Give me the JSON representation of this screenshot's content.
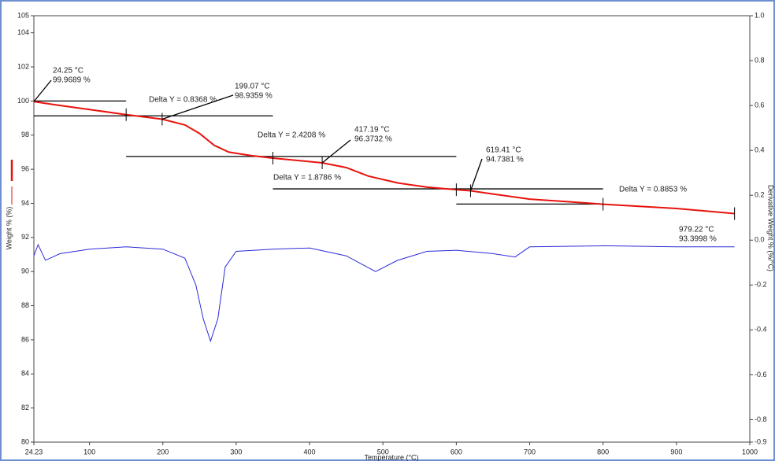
{
  "chart_data": {
    "type": "line",
    "xlabel": "Temperature (°C)",
    "ylabel": "Weight % (%)",
    "y2label": "Derivative Weight % (%/°C)",
    "xlim": [
      24.23,
      1000
    ],
    "xticks": [
      24.23,
      100,
      200,
      300,
      400,
      500,
      600,
      700,
      800,
      900,
      1000
    ],
    "ylim": [
      80,
      105
    ],
    "yticks": [
      80,
      82,
      84,
      86,
      88,
      90,
      92,
      94,
      96,
      98,
      100,
      102,
      104,
      105
    ],
    "y2lim": [
      -0.9,
      1.0
    ],
    "y2ticks": [
      {
        "value": -0.9,
        "label": "-0.9"
      },
      {
        "value": -0.8,
        "label": "-0.8"
      },
      {
        "value": -0.6,
        "label": "-0.6"
      },
      {
        "value": -0.4,
        "label": "-0.4"
      },
      {
        "value": -0.2,
        "label": "-0.2"
      },
      {
        "value": 0,
        "label": "0.0"
      },
      {
        "value": 0.2,
        "label": "0.2"
      },
      {
        "value": 0.4,
        "label": "0.4"
      },
      {
        "value": 0.6,
        "label": "0.6"
      },
      {
        "value": 0.8,
        "label": "0.8"
      },
      {
        "value": 1,
        "label": "1.0"
      }
    ],
    "series": [
      {
        "color": "#e8120c",
        "width": 2,
        "x": [
          24.23,
          50,
          100,
          150,
          199.07,
          230,
          250,
          270,
          290,
          320,
          350,
          417.19,
          450,
          480,
          520,
          560,
          600,
          619.41,
          650,
          700,
          750,
          800,
          900,
          979.22
        ],
        "values": [
          99.9689,
          99.8,
          99.5,
          99.2,
          98.9359,
          98.6,
          98.1,
          97.4,
          97.0,
          96.8,
          96.65,
          96.3732,
          96.1,
          95.6,
          95.2,
          94.95,
          94.8,
          94.7381,
          94.55,
          94.25,
          94.1,
          93.95,
          93.7,
          93.3998
        ]
      },
      {
        "color": "#2b2bd9",
        "width": 1,
        "axis": "y2",
        "x": [
          24.23,
          30,
          40,
          60,
          100,
          150,
          200,
          230,
          245,
          255,
          265,
          275,
          285,
          300,
          350,
          400,
          450,
          490,
          520,
          560,
          600,
          650,
          680,
          700,
          800,
          900,
          979.22
        ],
        "values": [
          -0.07,
          -0.02,
          -0.09,
          -0.06,
          -0.04,
          -0.03,
          -0.04,
          -0.08,
          -0.2,
          -0.35,
          -0.45,
          -0.35,
          -0.12,
          -0.05,
          -0.04,
          -0.035,
          -0.07,
          -0.14,
          -0.09,
          -0.05,
          -0.045,
          -0.06,
          -0.075,
          -0.03,
          -0.025,
          -0.03,
          -0.03
        ]
      }
    ],
    "reference_lines": [
      {
        "y": 100.0,
        "x": [
          24.23,
          150
        ]
      },
      {
        "y": 99.13,
        "x": [
          24.23,
          350
        ]
      },
      {
        "y": 96.75,
        "x": [
          150,
          600
        ]
      },
      {
        "y": 94.85,
        "x": [
          350,
          800
        ]
      },
      {
        "y": 93.96,
        "x": [
          600,
          800
        ]
      }
    ],
    "step_markers": [
      150,
      199.07,
      350,
      417.19,
      600,
      619.41,
      800,
      979.22
    ],
    "delta_labels": [
      "Delta Y = 0.8368 %",
      "Delta Y = 2.4208 %",
      "Delta Y = 1.8786 %",
      "Delta Y = 0.8853 %"
    ],
    "point_annotations": [
      {
        "x": 24.25,
        "y": 99.9689,
        "text": [
          "24.25 °C",
          "99.9689 %"
        ]
      },
      {
        "x": 199.07,
        "y": 98.9359,
        "text": [
          "199.07 °C",
          "98.9359 %"
        ]
      },
      {
        "x": 417.19,
        "y": 96.3732,
        "text": [
          "417.19 °C",
          "96.3732 %"
        ]
      },
      {
        "x": 619.41,
        "y": 94.7381,
        "text": [
          "619.41 °C",
          "94.7381 %"
        ]
      },
      {
        "x": 979.22,
        "y": 93.3998,
        "text": [
          "979.22 °C",
          "93.3998 %"
        ]
      }
    ]
  }
}
